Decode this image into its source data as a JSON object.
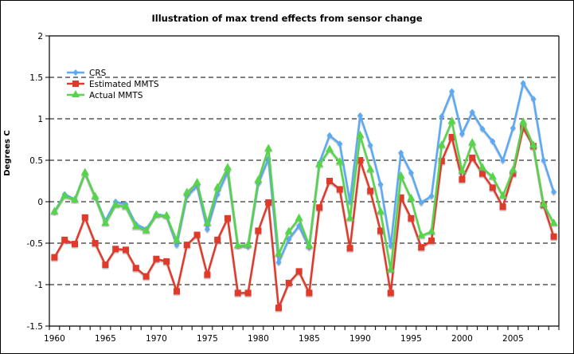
{
  "chart_data": {
    "type": "line",
    "title": "Illustration of max trend effects from sensor change",
    "xlabel": "",
    "ylabel": "Degrees C",
    "xlim": [
      1960,
      2009
    ],
    "ylim": [
      -1.5,
      2
    ],
    "x_ticks": [
      1960,
      1965,
      1970,
      1975,
      1980,
      1985,
      1990,
      1995,
      2000,
      2005
    ],
    "x_tick_labels": [
      "1960",
      "1965",
      "1970",
      "1975",
      "1980",
      "1985",
      "1990",
      "1995",
      "2000",
      "2005"
    ],
    "y_ticks": [
      -1.5,
      -1,
      -0.5,
      0,
      0.5,
      1,
      1.5,
      2
    ],
    "y_tick_labels": [
      "-1.5",
      "-1",
      "-0.5",
      "0",
      "0.5",
      "1",
      "1.5",
      "2"
    ],
    "grid": "horizontal-dashed",
    "legend_position": "top-left",
    "x": [
      1960,
      1961,
      1962,
      1963,
      1964,
      1965,
      1966,
      1967,
      1968,
      1969,
      1970,
      1971,
      1972,
      1973,
      1974,
      1975,
      1976,
      1977,
      1978,
      1979,
      1980,
      1981,
      1982,
      1983,
      1984,
      1985,
      1986,
      1987,
      1988,
      1989,
      1990,
      1991,
      1992,
      1993,
      1994,
      1995,
      1996,
      1997,
      1998,
      1999,
      2000,
      2001,
      2002,
      2003,
      2004,
      2005,
      2006,
      2007,
      2008,
      2009
    ],
    "series": [
      {
        "name": "CRS",
        "color": "#5aaaf5",
        "marker": "diamond",
        "values": [
          -0.12,
          0.09,
          0.03,
          0.35,
          0.06,
          -0.23,
          0.0,
          -0.03,
          -0.27,
          -0.33,
          -0.15,
          -0.17,
          -0.52,
          0.07,
          0.19,
          -0.33,
          0.09,
          0.36,
          -0.53,
          -0.54,
          0.22,
          0.52,
          -0.73,
          -0.45,
          -0.29,
          -0.55,
          0.47,
          0.8,
          0.7,
          0.0,
          1.04,
          0.68,
          0.21,
          -0.53,
          0.59,
          0.35,
          -0.01,
          0.07,
          1.03,
          1.33,
          0.82,
          1.08,
          0.88,
          0.73,
          0.5,
          0.89,
          1.43,
          1.24,
          0.5,
          0.12
        ]
      },
      {
        "name": "Estimated MMTS",
        "color": "#e03a2c",
        "marker": "square",
        "values": [
          -0.67,
          -0.46,
          -0.51,
          -0.19,
          -0.5,
          -0.76,
          -0.57,
          -0.58,
          -0.8,
          -0.9,
          -0.69,
          -0.72,
          -1.08,
          -0.52,
          -0.4,
          -0.88,
          -0.46,
          -0.2,
          -1.1,
          -1.1,
          -0.35,
          -0.01,
          -1.28,
          -0.98,
          -0.84,
          -1.1,
          -0.07,
          0.25,
          0.15,
          -0.56,
          0.5,
          0.13,
          -0.35,
          -1.1,
          0.05,
          -0.2,
          -0.55,
          -0.47,
          0.49,
          0.78,
          0.27,
          0.53,
          0.34,
          0.17,
          -0.06,
          0.34,
          0.89,
          0.67,
          -0.04,
          -0.42
        ]
      },
      {
        "name": "Actual MMTS",
        "color": "#55d64a",
        "marker": "triangle",
        "values": [
          -0.12,
          0.07,
          0.02,
          0.35,
          0.06,
          -0.26,
          -0.04,
          -0.06,
          -0.3,
          -0.35,
          -0.16,
          -0.17,
          -0.47,
          0.11,
          0.23,
          -0.26,
          0.17,
          0.41,
          -0.53,
          -0.52,
          0.26,
          0.64,
          -0.63,
          -0.36,
          -0.2,
          -0.53,
          0.45,
          0.63,
          0.48,
          -0.2,
          0.8,
          0.39,
          -0.12,
          -0.82,
          0.31,
          0.04,
          -0.41,
          -0.36,
          0.68,
          0.97,
          0.37,
          0.71,
          0.41,
          0.3,
          0.07,
          0.38,
          0.96,
          0.68,
          -0.03,
          -0.26
        ]
      }
    ]
  }
}
